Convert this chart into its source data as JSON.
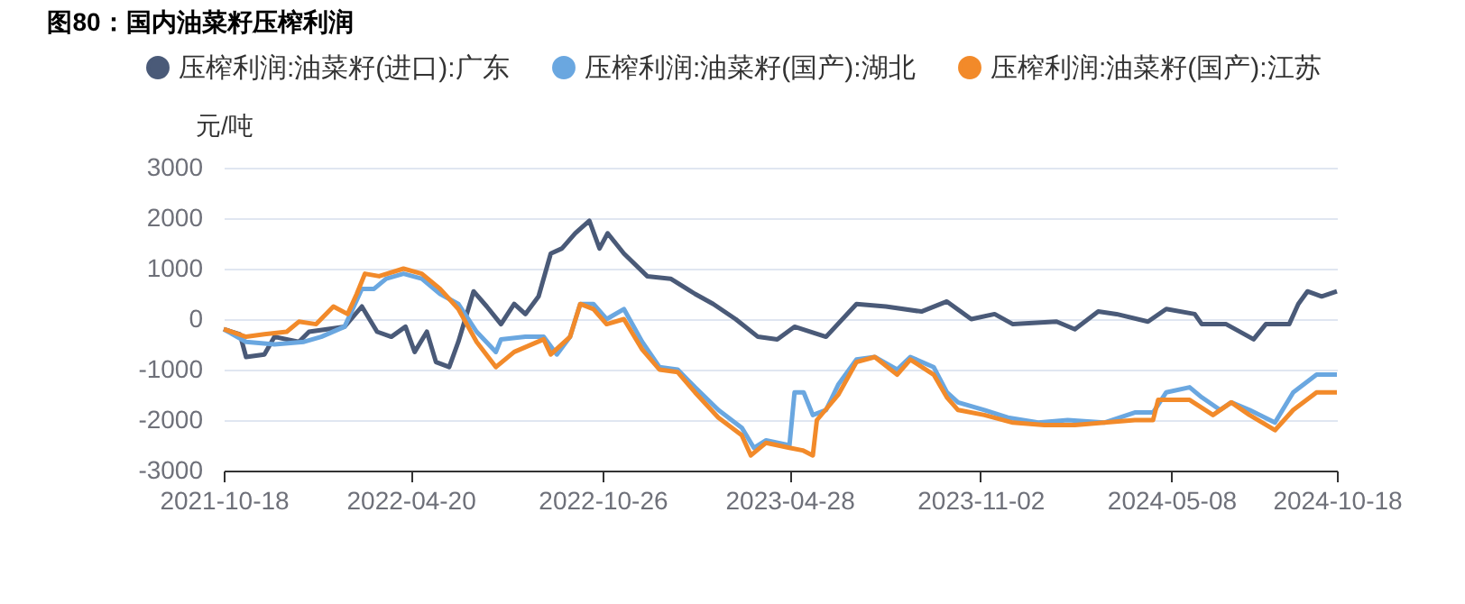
{
  "chart_data": {
    "type": "line",
    "title": "图80：国内油菜籽压榨利润",
    "ylabel": "元/吨",
    "xlim": [
      "2021-10-18",
      "2024-10-18"
    ],
    "xticks": [
      "2021-10-18",
      "2022-04-20",
      "2022-10-26",
      "2023-04-28",
      "2023-11-02",
      "2024-05-08",
      "2024-10-18"
    ],
    "ylim": [
      -3000,
      3000
    ],
    "yticks": [
      -3000,
      -2000,
      -1000,
      0,
      1000,
      2000,
      3000
    ],
    "grid": "y",
    "legend": "top",
    "series": [
      {
        "name": "压榨利润:油菜籽(进口):广东",
        "color": "#4a5a78",
        "x": [
          "2021-10-18",
          "2021-11-03",
          "2021-11-09",
          "2021-11-27",
          "2021-12-07",
          "2021-12-31",
          "2022-01-10",
          "2022-02-14",
          "2022-03-03",
          "2022-03-18",
          "2022-04-01",
          "2022-04-15",
          "2022-04-24",
          "2022-05-06",
          "2022-05-15",
          "2022-05-28",
          "2022-06-06",
          "2022-06-21",
          "2022-07-04",
          "2022-07-18",
          "2022-07-31",
          "2022-08-11",
          "2022-08-24",
          "2022-09-05",
          "2022-09-16",
          "2022-09-29",
          "2022-10-13",
          "2022-10-23",
          "2022-10-31",
          "2022-11-16",
          "2022-12-09",
          "2023-01-01",
          "2023-01-25",
          "2023-02-12",
          "2023-03-06",
          "2023-03-28",
          "2023-04-16",
          "2023-05-03",
          "2023-06-03",
          "2023-07-03",
          "2023-08-01",
          "2023-09-05",
          "2023-09-30",
          "2023-10-24",
          "2023-11-16",
          "2023-12-04",
          "2024-01-16",
          "2024-02-03",
          "2024-02-26",
          "2024-03-15",
          "2024-04-15",
          "2024-05-03",
          "2024-05-31",
          "2024-06-07",
          "2024-07-01",
          "2024-07-28",
          "2024-08-09",
          "2024-09-01",
          "2024-09-10",
          "2024-09-19",
          "2024-10-03",
          "2024-10-18"
        ],
        "values": [
          -200,
          -300,
          -750,
          -700,
          -350,
          -450,
          -250,
          -150,
          250,
          -250,
          -350,
          -150,
          -650,
          -250,
          -850,
          -950,
          -450,
          550,
          250,
          -100,
          300,
          100,
          450,
          1300,
          1400,
          1700,
          1950,
          1400,
          1700,
          1300,
          850,
          800,
          500,
          300,
          0,
          -350,
          -400,
          -150,
          -350,
          300,
          250,
          150,
          350,
          0,
          100,
          -100,
          -50,
          -200,
          150,
          100,
          -50,
          200,
          100,
          -100,
          -100,
          -400,
          -100,
          -100,
          300,
          550,
          450,
          550
        ]
      },
      {
        "name": "压榨利润:油菜籽(国产):湖北",
        "color": "#6aa7e0",
        "x": [
          "2021-10-18",
          "2021-11-09",
          "2021-12-07",
          "2022-01-05",
          "2022-01-22",
          "2022-02-14",
          "2022-03-03",
          "2022-03-15",
          "2022-03-27",
          "2022-04-13",
          "2022-05-01",
          "2022-05-19",
          "2022-06-06",
          "2022-06-24",
          "2022-07-13",
          "2022-07-18",
          "2022-08-11",
          "2022-08-29",
          "2022-09-11",
          "2022-09-24",
          "2022-10-04",
          "2022-10-17",
          "2022-10-30",
          "2022-11-16",
          "2022-12-04",
          "2022-12-21",
          "2023-01-08",
          "2023-01-25",
          "2023-02-17",
          "2023-03-12",
          "2023-03-24",
          "2023-04-05",
          "2023-04-28",
          "2023-05-03",
          "2023-05-12",
          "2023-05-21",
          "2023-06-03",
          "2023-06-15",
          "2023-07-03",
          "2023-07-21",
          "2023-08-12",
          "2023-08-25",
          "2023-09-17",
          "2023-09-30",
          "2023-10-11",
          "2023-11-06",
          "2023-11-29",
          "2023-12-29",
          "2024-01-27",
          "2024-03-03",
          "2024-04-02",
          "2024-04-20",
          "2024-05-03",
          "2024-05-26",
          "2024-06-07",
          "2024-06-25",
          "2024-07-06",
          "2024-07-24",
          "2024-08-18",
          "2024-09-05",
          "2024-09-28",
          "2024-10-18"
        ],
        "values": [
          -200,
          -450,
          -500,
          -450,
          -350,
          -150,
          600,
          600,
          800,
          900,
          800,
          500,
          300,
          -250,
          -650,
          -400,
          -350,
          -350,
          -700,
          -350,
          300,
          300,
          0,
          200,
          -450,
          -950,
          -1000,
          -1350,
          -1800,
          -2150,
          -2550,
          -2400,
          -2500,
          -1450,
          -1450,
          -1900,
          -1800,
          -1300,
          -800,
          -750,
          -1000,
          -750,
          -950,
          -1450,
          -1650,
          -1800,
          -1950,
          -2050,
          -2000,
          -2050,
          -1850,
          -1850,
          -1450,
          -1350,
          -1550,
          -1800,
          -1650,
          -1800,
          -2050,
          -1450,
          -1100,
          -1100
        ]
      },
      {
        "name": "压榨利润:油菜籽(国产):江苏",
        "color": "#f28a2a",
        "x": [
          "2021-10-18",
          "2021-11-09",
          "2021-11-27",
          "2021-12-19",
          "2021-12-31",
          "2022-01-17",
          "2022-02-03",
          "2022-02-17",
          "2022-02-26",
          "2022-03-06",
          "2022-03-20",
          "2022-04-13",
          "2022-05-01",
          "2022-05-19",
          "2022-06-06",
          "2022-06-24",
          "2022-07-13",
          "2022-07-31",
          "2022-08-29",
          "2022-09-05",
          "2022-09-24",
          "2022-10-04",
          "2022-10-17",
          "2022-10-30",
          "2022-11-16",
          "2022-12-04",
          "2022-12-21",
          "2023-01-08",
          "2023-01-25",
          "2023-02-17",
          "2023-03-12",
          "2023-03-21",
          "2023-04-05",
          "2023-04-28",
          "2023-05-11",
          "2023-05-21",
          "2023-05-25",
          "2023-06-15",
          "2023-07-03",
          "2023-07-21",
          "2023-08-12",
          "2023-08-25",
          "2023-09-17",
          "2023-09-30",
          "2023-10-11",
          "2023-11-06",
          "2023-12-04",
          "2024-01-04",
          "2024-02-03",
          "2024-03-03",
          "2024-04-02",
          "2024-04-20",
          "2024-04-25",
          "2024-05-26",
          "2024-06-18",
          "2024-07-06",
          "2024-07-24",
          "2024-08-18",
          "2024-09-05",
          "2024-09-28",
          "2024-10-18"
        ],
        "values": [
          -200,
          -350,
          -300,
          -250,
          -50,
          -100,
          250,
          100,
          500,
          900,
          850,
          1000,
          900,
          600,
          200,
          -450,
          -950,
          -650,
          -400,
          -700,
          -350,
          300,
          200,
          -100,
          0,
          -600,
          -1000,
          -1050,
          -1450,
          -1950,
          -2300,
          -2700,
          -2450,
          -2550,
          -2600,
          -2700,
          -2000,
          -1500,
          -850,
          -750,
          -1100,
          -800,
          -1100,
          -1550,
          -1800,
          -1900,
          -2050,
          -2100,
          -2100,
          -2050,
          -2000,
          -2000,
          -1600,
          -1600,
          -1900,
          -1650,
          -1900,
          -2200,
          -1800,
          -1450,
          -1450
        ]
      }
    ]
  }
}
